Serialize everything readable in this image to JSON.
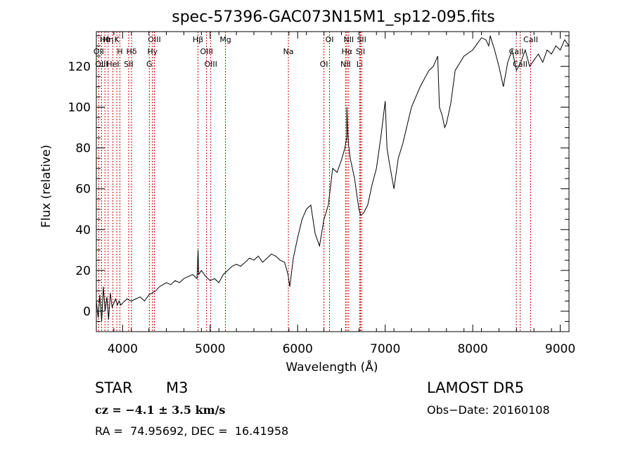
{
  "chart_data": {
    "type": "line",
    "title": "spec-57396-GAC073N15M1_sp12-095.fits",
    "xlabel": "Wavelength (Å)",
    "ylabel": "Flux (relative)",
    "xlim": [
      3700,
      9100
    ],
    "ylim": [
      -10,
      137
    ],
    "xticks": [
      4000,
      5000,
      6000,
      7000,
      8000,
      9000
    ],
    "yticks": [
      0,
      20,
      40,
      60,
      80,
      100,
      120
    ],
    "grid": false,
    "line_color": "#000000",
    "marker_color": "#cc0000",
    "series": [
      {
        "x": [
          3700,
          3720,
          3740,
          3760,
          3780,
          3800,
          3820,
          3840,
          3860,
          3880,
          3900,
          3920,
          3940,
          3960,
          3980,
          4000,
          4050,
          4100,
          4150,
          4200,
          4250,
          4300,
          4340,
          4380,
          4420,
          4460,
          4500,
          4550,
          4600,
          4650,
          4700,
          4750,
          4800,
          4850,
          4862,
          4870,
          4900,
          4950,
          5000,
          5050,
          5100,
          5150,
          5200,
          5250,
          5300,
          5350,
          5400,
          5450,
          5500,
          5550,
          5600,
          5650,
          5700,
          5750,
          5800,
          5850,
          5890,
          5910,
          5950,
          6000,
          6050,
          6100,
          6150,
          6200,
          6250,
          6300,
          6350,
          6400,
          6450,
          6500,
          6540,
          6560,
          6563,
          6570,
          6580,
          6600,
          6650,
          6700,
          6720,
          6750,
          6800,
          6850,
          6900,
          6950,
          7000,
          7020,
          7050,
          7100,
          7150,
          7200,
          7300,
          7400,
          7500,
          7550,
          7600,
          7620,
          7650,
          7680,
          7700,
          7750,
          7800,
          7900,
          8000,
          8100,
          8150,
          8183,
          8200,
          8250,
          8300,
          8350,
          8400,
          8450,
          8500,
          8550,
          8600,
          8650,
          8700,
          8750,
          8800,
          8850,
          8900,
          8950,
          9000,
          9050,
          9100
        ],
        "y": [
          5,
          -3,
          8,
          -5,
          12,
          0,
          7,
          -4,
          9,
          2,
          4,
          6,
          3,
          5,
          3,
          4,
          6,
          5,
          6,
          7,
          5,
          8,
          9,
          10,
          12,
          13,
          14,
          13,
          15,
          14,
          16,
          17,
          18,
          16,
          30,
          18,
          20,
          17,
          15,
          16,
          14,
          18,
          20,
          22,
          23,
          22,
          24,
          26,
          25,
          27,
          24,
          26,
          28,
          27,
          25,
          24,
          18,
          12,
          26,
          36,
          45,
          50,
          52,
          38,
          32,
          45,
          52,
          70,
          68,
          74,
          80,
          85,
          100,
          90,
          82,
          75,
          65,
          50,
          47,
          48,
          52,
          62,
          70,
          85,
          103,
          80,
          72,
          60,
          75,
          82,
          100,
          110,
          118,
          120,
          125,
          100,
          96,
          90,
          92,
          102,
          118,
          125,
          128,
          134,
          133,
          130,
          135,
          128,
          120,
          110,
          122,
          128,
          118,
          122,
          128,
          120,
          123,
          126,
          122,
          128,
          126,
          130,
          128,
          133,
          130
        ]
      }
    ],
    "lines": [
      {
        "label": "Hθ",
        "wl": 3798
      },
      {
        "label": "OII",
        "wl": 3727
      },
      {
        "label": "OIII",
        "wl": 3760
      },
      {
        "label": "K",
        "wl": 3934
      },
      {
        "label": "H",
        "wl": 3969
      },
      {
        "label": "HeI",
        "wl": 3889
      },
      {
        "label": "Hη",
        "wl": 3835
      },
      {
        "label": "Hδ",
        "wl": 4102
      },
      {
        "label": "SII",
        "wl": 4069
      },
      {
        "label": "OIII",
        "wl": 4363
      },
      {
        "label": "Hγ",
        "wl": 4341
      },
      {
        "label": "G",
        "wl": 4305
      },
      {
        "label": "Hβ",
        "wl": 4861
      },
      {
        "label": "OIII",
        "wl": 4959
      },
      {
        "label": "OIII",
        "wl": 5007
      },
      {
        "label": "Mg",
        "wl": 5175
      },
      {
        "label": "Na",
        "wl": 5894
      },
      {
        "label": "OI",
        "wl": 6300
      },
      {
        "label": "OI",
        "wl": 6364
      },
      {
        "label": "Hα",
        "wl": 6563
      },
      {
        "label": "NII",
        "wl": 6548
      },
      {
        "label": "NII",
        "wl": 6583
      },
      {
        "label": "SII",
        "wl": 6717
      },
      {
        "label": "Li",
        "wl": 6708
      },
      {
        "label": "SII",
        "wl": 6731
      },
      {
        "label": "CaII",
        "wl": 8498
      },
      {
        "label": "CaII",
        "wl": 8542
      },
      {
        "label": "CaII",
        "wl": 8662
      }
    ]
  },
  "info": {
    "class": "STAR",
    "subclass": "M3",
    "survey": "LAMOST DR5",
    "cz": "cz = −4.1 ± 3.5 km/s",
    "obs_date": "Obs−Date: 20160108",
    "coords": "RA =  74.95692, DEC =  16.41958"
  }
}
